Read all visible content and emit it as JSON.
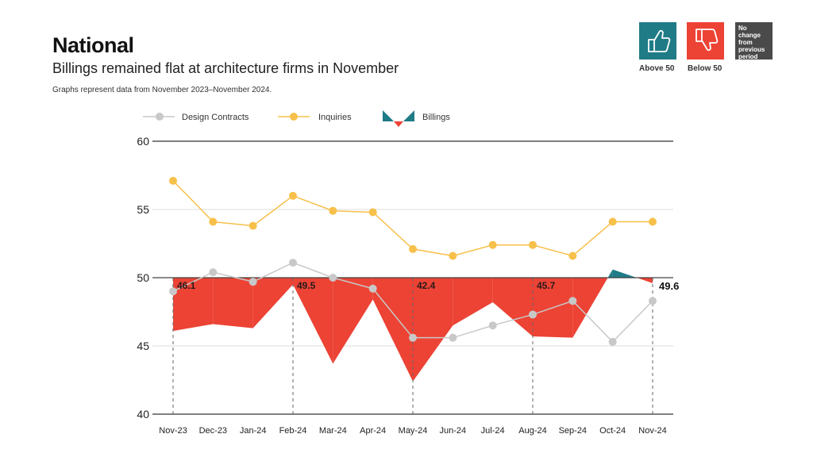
{
  "header": {
    "title": "National",
    "subtitle": "Billings remained flat at architecture firms in November",
    "note": "Graphs represent data from November 2023–November 2024."
  },
  "badges": {
    "above": {
      "label": "Above 50",
      "icon": "thumbs-up-icon",
      "color": "#1f7b86"
    },
    "below": {
      "label": "Below 50",
      "icon": "thumbs-down-icon",
      "color": "#ec4335"
    },
    "nochange": {
      "label": "No change from previous period",
      "color": "#4a4a4a"
    }
  },
  "chart_data": {
    "type": "line",
    "title": "National",
    "xlabel": "",
    "ylabel": "",
    "ylim": [
      40,
      60
    ],
    "yticks": [
      40,
      45,
      50,
      55,
      60
    ],
    "baseline": 50,
    "grid": true,
    "legend_position": "top-left",
    "categories": [
      "Nov-23",
      "Dec-23",
      "Jan-24",
      "Feb-24",
      "Mar-24",
      "Apr-24",
      "May-24",
      "Jun-24",
      "Jul-24",
      "Aug-24",
      "Sep-24",
      "Oct-24",
      "Nov-24"
    ],
    "series": [
      {
        "name": "Design Contracts",
        "kind": "line",
        "color": "#c8c8c8",
        "values": [
          49.0,
          50.4,
          49.7,
          51.1,
          50.0,
          49.2,
          45.6,
          45.6,
          46.5,
          47.3,
          48.3,
          45.3,
          48.3
        ]
      },
      {
        "name": "Inquiries",
        "kind": "line",
        "color": "#f7c04a",
        "values": [
          57.1,
          54.1,
          53.8,
          56.0,
          54.9,
          54.8,
          52.1,
          51.6,
          52.4,
          52.4,
          51.6,
          54.1,
          54.1
        ]
      },
      {
        "name": "Billings",
        "kind": "area-from-baseline",
        "color_above": "#1f7b86",
        "color_below": "#ec4335",
        "values": [
          46.1,
          46.6,
          46.3,
          49.5,
          43.7,
          48.4,
          42.4,
          46.5,
          48.2,
          45.7,
          45.6,
          50.6,
          49.6
        ]
      }
    ],
    "annotations": [
      {
        "index": 0,
        "text": "46.1"
      },
      {
        "index": 3,
        "text": "49.5"
      },
      {
        "index": 6,
        "text": "42.4"
      },
      {
        "index": 9,
        "text": "45.7"
      },
      {
        "index": 12,
        "text": "49.6"
      }
    ]
  }
}
